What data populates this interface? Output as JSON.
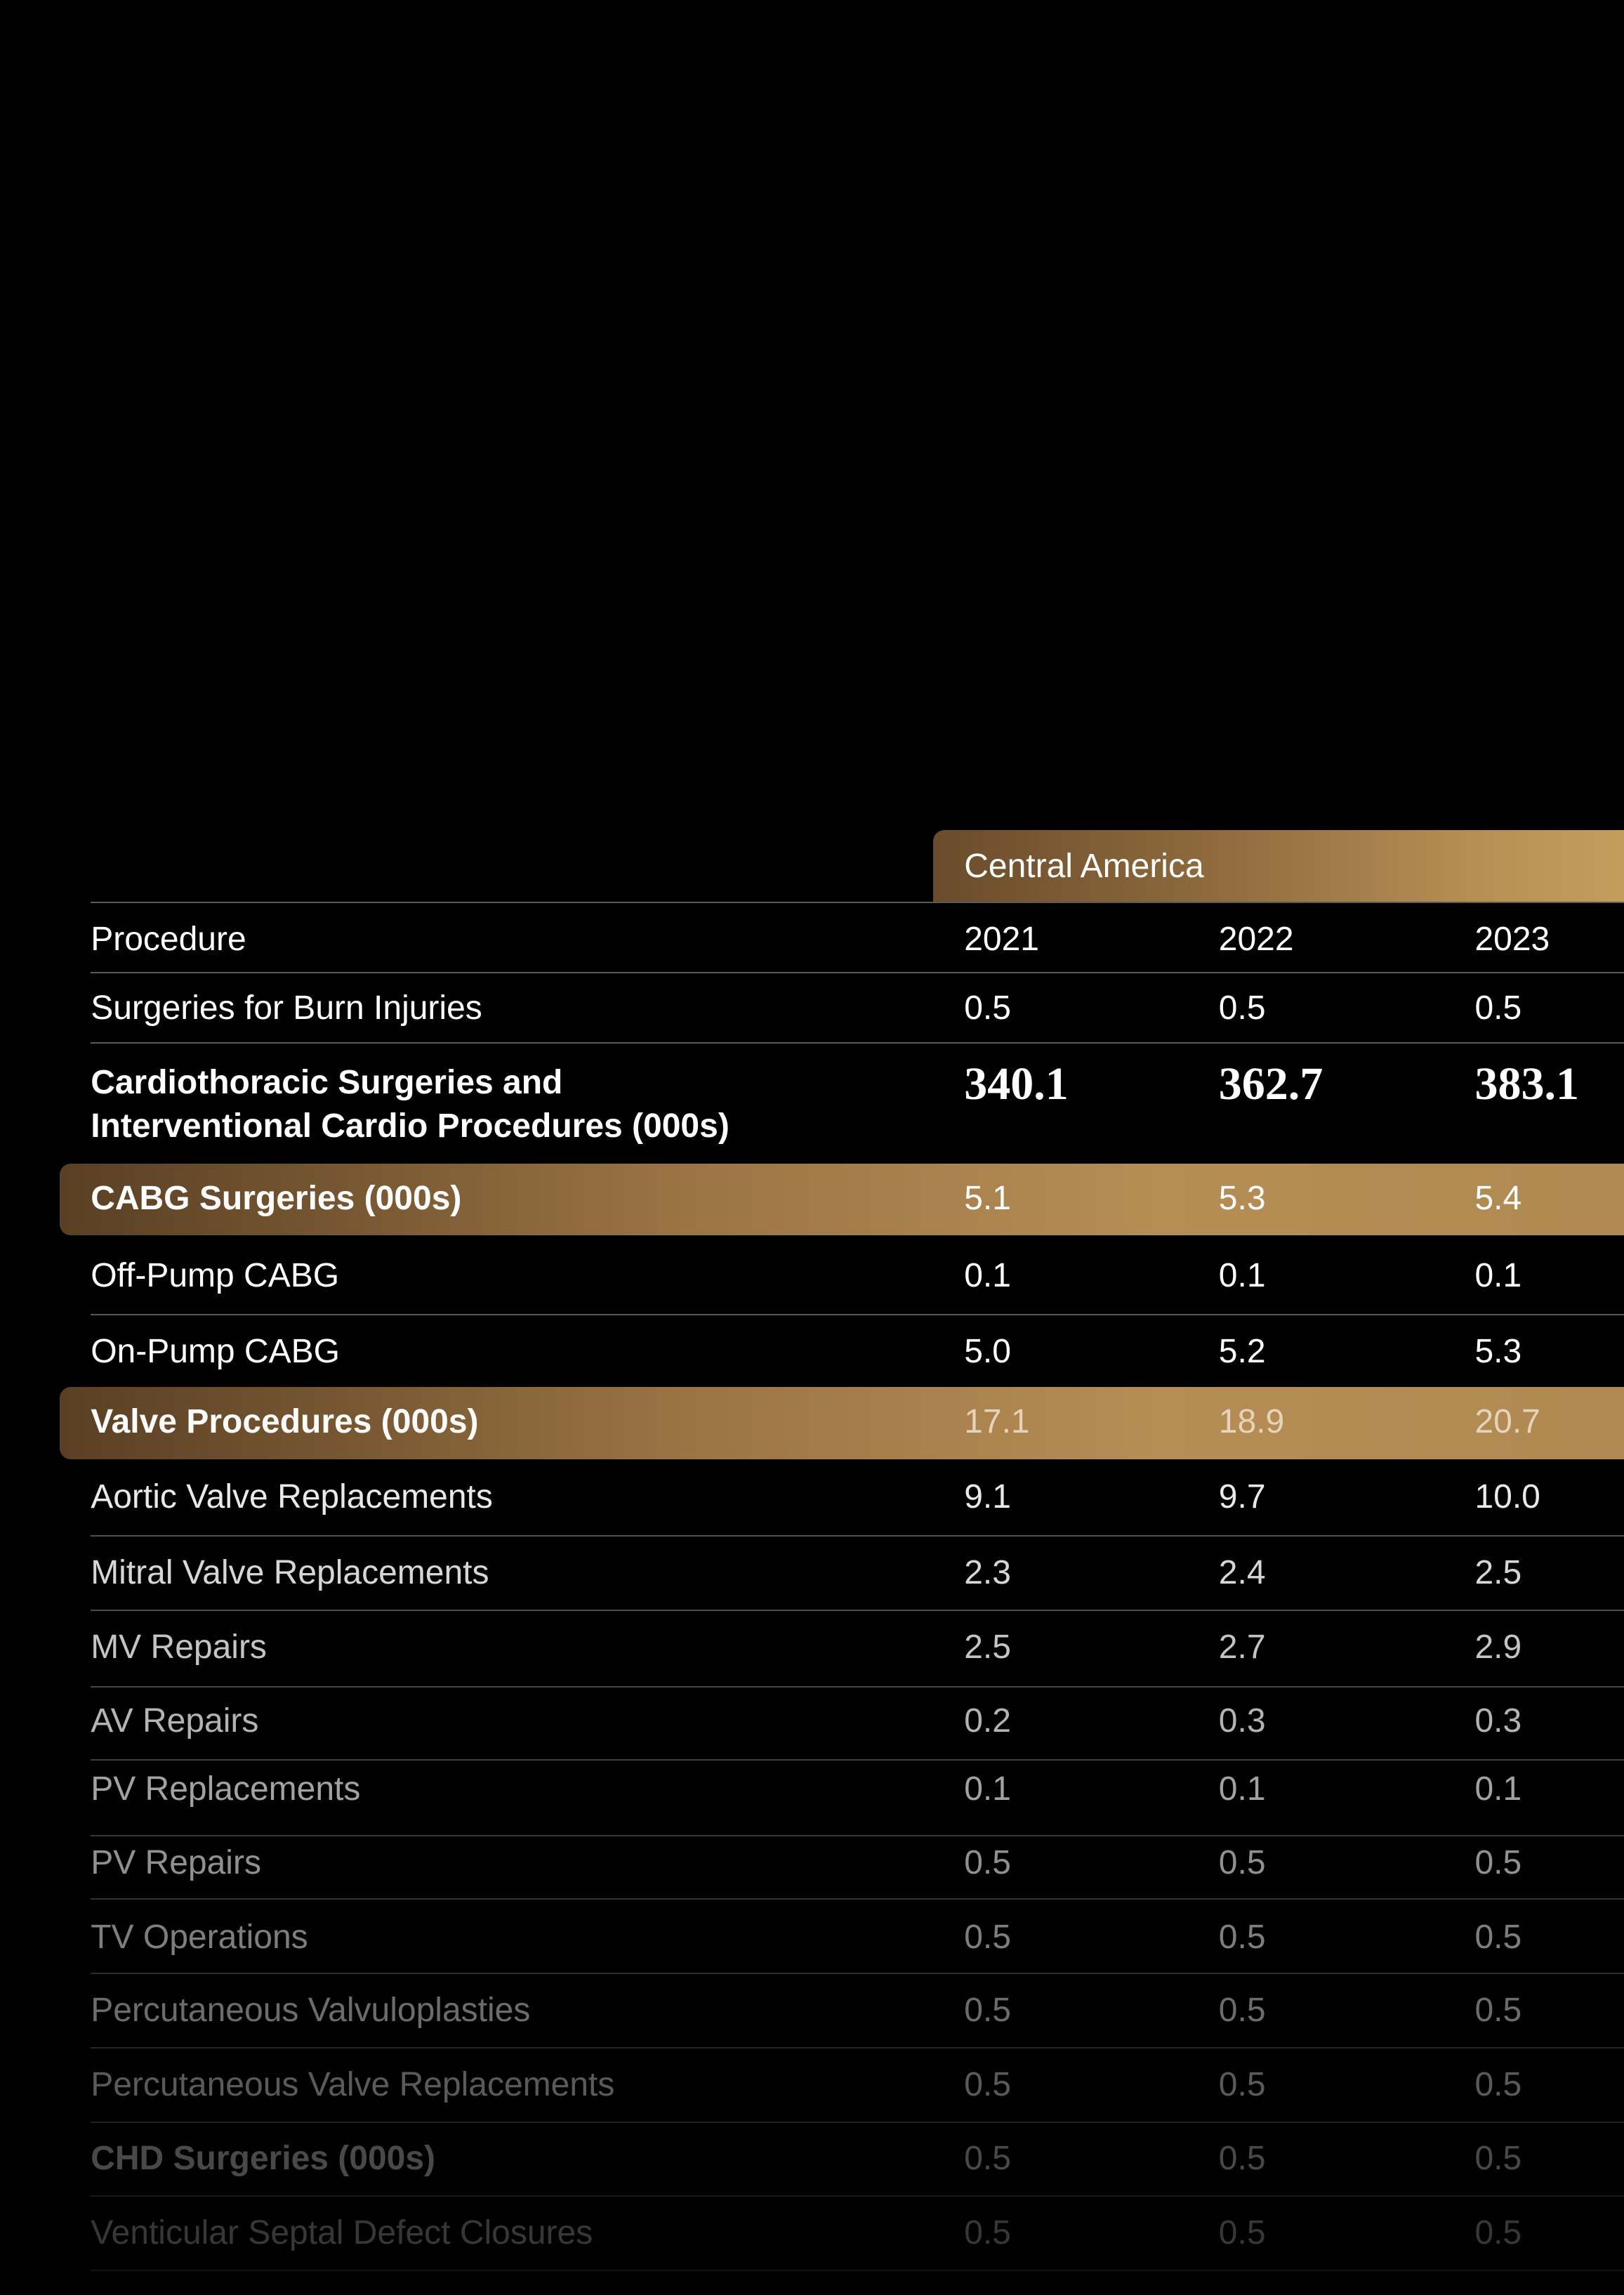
{
  "table": {
    "region": "Central America",
    "columns": [
      "Procedure",
      "2021",
      "2022",
      "2023"
    ],
    "rows": [
      [
        "Surgeries for Burn Injuries",
        "0.5",
        "0.5",
        "0.5"
      ],
      [
        "Cardiothoracic Surgeries and Interventional Cardio Procedures (000s)",
        "340.1",
        "362.7",
        "383.1"
      ],
      [
        "CABG Surgeries (000s)",
        "5.1",
        "5.3",
        "5.4"
      ],
      [
        "Off-Pump CABG",
        "0.1",
        "0.1",
        "0.1"
      ],
      [
        "On-Pump CABG",
        "5.0",
        "5.2",
        "5.3"
      ],
      [
        "Valve Procedures (000s)",
        "17.1",
        "18.9",
        "20.7"
      ],
      [
        "Aortic Valve Replacements",
        "9.1",
        "9.7",
        "10.0"
      ],
      [
        "Mitral Valve Replacements",
        "2.3",
        "2.4",
        "2.5"
      ],
      [
        "MV Repairs",
        "2.5",
        "2.7",
        "2.9"
      ],
      [
        "AV Repairs",
        "0.2",
        "0.3",
        "0.3"
      ],
      [
        "PV Replacements",
        "0.1",
        "0.1",
        "0.1"
      ],
      [
        "PV Repairs",
        "0.5",
        "0.5",
        "0.5"
      ],
      [
        "TV Operations",
        "0.5",
        "0.5",
        "0.5"
      ],
      [
        "Percutaneous Valvuloplasties",
        "0.5",
        "0.5",
        "0.5"
      ],
      [
        "Percutaneous Valve Replacements",
        "0.5",
        "0.5",
        "0.5"
      ],
      [
        "CHD Surgeries (000s)",
        "0.5",
        "0.5",
        "0.5"
      ],
      [
        "Venticular Septal Defect Closures",
        "0.5",
        "0.5",
        "0.5"
      ]
    ]
  }
}
